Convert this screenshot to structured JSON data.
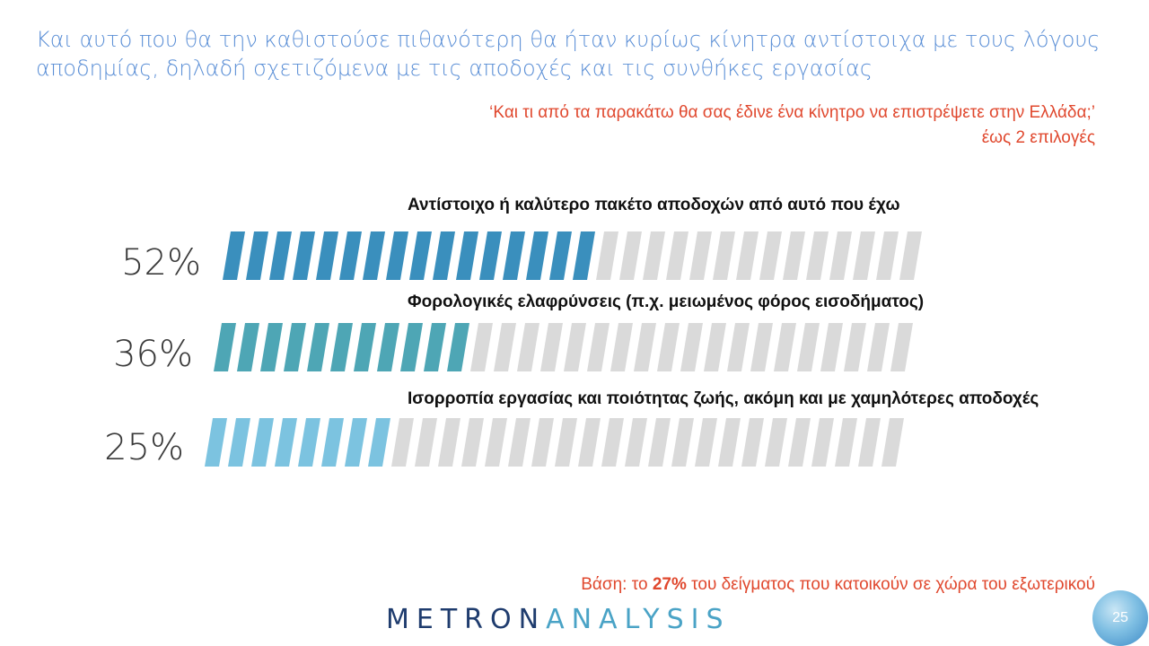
{
  "headline": "Και αυτό που θα την καθιστούσε πιθανότερη θα ήταν κυρίως κίνητρα αντίστοιχα με τους λόγους αποδημίας, δηλαδή σχετιζόμενα με τις αποδοχές και τις συνθήκες εργασίας",
  "question": {
    "line1": "‘Και τι από τα παρακάτω θα σας έδινε ένα κίνητρο να επιστρέψετε στην Ελλάδα;’",
    "line2": "έως 2 επιλογές"
  },
  "chart_data": {
    "type": "bar",
    "orientation": "horizontal",
    "categories": [
      "Αντίστοιχο ή καλύτερο πακέτο αποδοχών από αυτό που έχω",
      "Φορολογικές ελαφρύνσεις (π.χ. μειωμένος φόρος εισοδήματος)",
      "Ισορροπία εργασίας και ποιότητας ζωής, ακόμη και με χαμηλότερες αποδοχές"
    ],
    "values": [
      52,
      36,
      25
    ],
    "value_labels": [
      "52%",
      "36%",
      "25%"
    ],
    "ylim": [
      0,
      100
    ],
    "colors": [
      "#3a8fbd",
      "#4ea6b5",
      "#7cc3e0"
    ],
    "track_color": "#dadada",
    "grid": false
  },
  "base_note": {
    "prefix": "Βάση: το ",
    "highlight": "27%",
    "suffix": " του δείγματος που κατοικούν σε χώρα του εξωτερικού"
  },
  "logo": {
    "part1": "METRON",
    "part2": "ANALYSIS"
  },
  "page_number": "25"
}
